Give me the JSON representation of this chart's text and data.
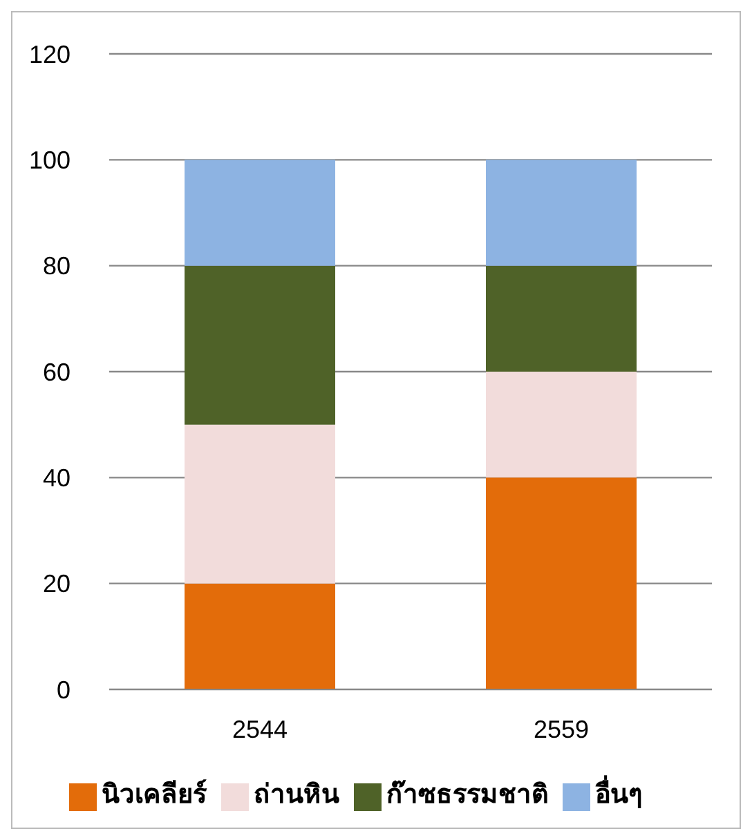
{
  "chart_data": {
    "type": "bar",
    "stacked": true,
    "categories": [
      "2544",
      "2559"
    ],
    "series": [
      {
        "name": "นิวเคลียร์",
        "color": "#e36c0a",
        "values": [
          20,
          40
        ]
      },
      {
        "name": "ถ่านหิน",
        "color": "#f2dcdb",
        "values": [
          30,
          20
        ]
      },
      {
        "name": "ก๊าซธรรมชาติ",
        "color": "#4f6228",
        "values": [
          30,
          20
        ]
      },
      {
        "name": "อื่นๆ",
        "color": "#8db3e2",
        "values": [
          20,
          20
        ]
      }
    ],
    "ylim": [
      0,
      120
    ],
    "yticks": [
      0,
      20,
      40,
      60,
      80,
      100,
      120
    ],
    "grid": "y",
    "legend": "bottom"
  }
}
